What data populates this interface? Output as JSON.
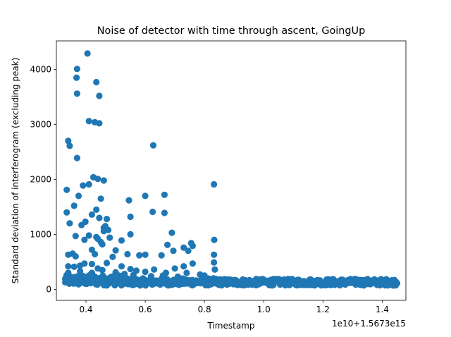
{
  "chart_data": {
    "type": "scatter",
    "title": "Noise of detector with time through ascent, GoingUp",
    "xlabel": "Timestamp",
    "ylabel": "Standard deviation of interferogram (excluding peak)",
    "x_offset_label": "1e10+1.5673e15",
    "xlim": [
      0.3,
      1.48
    ],
    "ylim": [
      -200,
      4520
    ],
    "xticks": [
      0.4,
      0.6,
      0.8,
      1.0,
      1.2,
      1.4
    ],
    "xtick_labels": [
      "0.4",
      "0.6",
      "0.8",
      "1.0",
      "1.2",
      "1.4"
    ],
    "yticks": [
      0,
      1000,
      2000,
      3000,
      4000
    ],
    "ytick_labels": [
      "0",
      "1000",
      "2000",
      "3000",
      "4000"
    ],
    "grid": false,
    "marker_color": "#1f77b4",
    "series": [
      {
        "name": "",
        "points": [
          [
            0.405,
            4290
          ],
          [
            0.37,
            4010
          ],
          [
            0.368,
            3850
          ],
          [
            0.435,
            3770
          ],
          [
            0.37,
            3560
          ],
          [
            0.445,
            3520
          ],
          [
            0.41,
            3060
          ],
          [
            0.43,
            3040
          ],
          [
            0.445,
            3020
          ],
          [
            0.34,
            2700
          ],
          [
            0.345,
            2610
          ],
          [
            0.627,
            2620
          ],
          [
            0.37,
            2390
          ],
          [
            0.425,
            2040
          ],
          [
            0.44,
            2010
          ],
          [
            0.46,
            1980
          ],
          [
            0.39,
            1890
          ],
          [
            0.41,
            1910
          ],
          [
            0.832,
            1910
          ],
          [
            0.335,
            1810
          ],
          [
            0.375,
            1700
          ],
          [
            0.6,
            1700
          ],
          [
            0.665,
            1720
          ],
          [
            0.45,
            1650
          ],
          [
            0.545,
            1620
          ],
          [
            0.36,
            1520
          ],
          [
            0.335,
            1400
          ],
          [
            0.435,
            1450
          ],
          [
            0.625,
            1410
          ],
          [
            0.665,
            1390
          ],
          [
            0.42,
            1360
          ],
          [
            0.445,
            1300
          ],
          [
            0.55,
            1320
          ],
          [
            0.345,
            1200
          ],
          [
            0.385,
            1170
          ],
          [
            0.398,
            1230
          ],
          [
            0.47,
            1280
          ],
          [
            0.46,
            1120
          ],
          [
            0.465,
            1150
          ],
          [
            0.46,
            1060
          ],
          [
            0.475,
            1080
          ],
          [
            0.55,
            1000
          ],
          [
            0.365,
            970
          ],
          [
            0.41,
            980
          ],
          [
            0.69,
            1030
          ],
          [
            0.395,
            900
          ],
          [
            0.435,
            950
          ],
          [
            0.44,
            920
          ],
          [
            0.48,
            940
          ],
          [
            0.45,
            860
          ],
          [
            0.52,
            890
          ],
          [
            0.833,
            900
          ],
          [
            0.455,
            820
          ],
          [
            0.675,
            810
          ],
          [
            0.73,
            760
          ],
          [
            0.745,
            700
          ],
          [
            0.755,
            840
          ],
          [
            0.76,
            790
          ],
          [
            0.42,
            720
          ],
          [
            0.5,
            710
          ],
          [
            0.54,
            640
          ],
          [
            0.58,
            620
          ],
          [
            0.6,
            630
          ],
          [
            0.655,
            620
          ],
          [
            0.695,
            700
          ],
          [
            0.832,
            630
          ],
          [
            0.34,
            630
          ],
          [
            0.355,
            650
          ],
          [
            0.43,
            640
          ],
          [
            0.365,
            600
          ],
          [
            0.49,
            590
          ],
          [
            0.34,
            420
          ],
          [
            0.36,
            410
          ],
          [
            0.38,
            430
          ],
          [
            0.395,
            470
          ],
          [
            0.42,
            460
          ],
          [
            0.44,
            380
          ],
          [
            0.455,
            350
          ],
          [
            0.47,
            480
          ],
          [
            0.52,
            420
          ],
          [
            0.55,
            370
          ],
          [
            0.57,
            340
          ],
          [
            0.6,
            320
          ],
          [
            0.63,
            360
          ],
          [
            0.67,
            300
          ],
          [
            0.7,
            380
          ],
          [
            0.73,
            420
          ],
          [
            0.76,
            470
          ],
          [
            0.832,
            490
          ],
          [
            0.835,
            360
          ],
          [
            0.74,
            300
          ],
          [
            0.785,
            270
          ],
          [
            0.8,
            250
          ],
          [
            0.34,
            300
          ],
          [
            0.38,
            330
          ],
          [
            0.42,
            300
          ],
          [
            0.5,
            310
          ],
          [
            0.53,
            280
          ],
          [
            0.56,
            260
          ],
          [
            0.62,
            240
          ],
          [
            0.66,
            250
          ],
          [
            0.71,
            230
          ]
        ],
        "dense_band": [
          {
            "x_start": 0.33,
            "x_end": 0.52,
            "y_min": 70,
            "y_max": 260
          },
          {
            "x_start": 0.52,
            "x_end": 0.84,
            "y_min": 70,
            "y_max": 200
          },
          {
            "x_start": 0.84,
            "x_end": 1.45,
            "y_min": 70,
            "y_max": 190
          }
        ]
      }
    ]
  }
}
